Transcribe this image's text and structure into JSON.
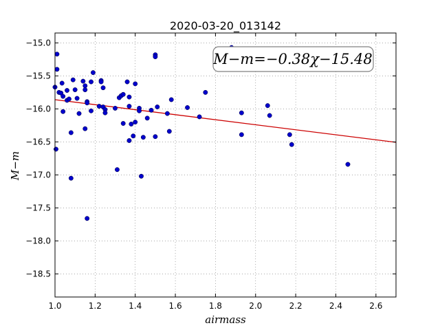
{
  "chart_data": {
    "type": "scatter",
    "title": "2020-03-20_013142",
    "xlabel": "airmass",
    "ylabel": "M−m",
    "xlim": [
      1.0,
      2.7
    ],
    "ylim": [
      -18.85,
      -14.85
    ],
    "x_ticks": [
      1.0,
      1.2,
      1.4,
      1.6,
      1.8,
      2.0,
      2.2,
      2.4,
      2.6
    ],
    "x_tick_labels": [
      "1.0",
      "1.2",
      "1.4",
      "1.6",
      "1.8",
      "2.0",
      "2.2",
      "2.4",
      "2.6"
    ],
    "y_ticks": [
      -15.0,
      -15.5,
      -16.0,
      -16.5,
      -17.0,
      -17.5,
      -18.0,
      -18.5
    ],
    "y_tick_labels": [
      "−15.0",
      "−15.5",
      "−16.0",
      "−16.5",
      "−17.0",
      "−17.5",
      "−18.0",
      "−18.5"
    ],
    "grid": true,
    "point_color": "#0000cc",
    "fit_color": "#cc0000",
    "fit": {
      "slope": -0.38,
      "intercept": -15.48
    },
    "annotation": "M−m=−0.38χ−15.48",
    "points": [
      [
        1.0,
        -15.67
      ],
      [
        1.005,
        -16.61
      ],
      [
        1.01,
        -15.17
      ],
      [
        1.01,
        -15.4
      ],
      [
        1.02,
        -15.75
      ],
      [
        1.03,
        -15.76
      ],
      [
        1.035,
        -15.61
      ],
      [
        1.04,
        -15.81
      ],
      [
        1.04,
        -16.04
      ],
      [
        1.06,
        -15.72
      ],
      [
        1.06,
        -15.87
      ],
      [
        1.07,
        -15.85
      ],
      [
        1.08,
        -16.36
      ],
      [
        1.08,
        -17.05
      ],
      [
        1.09,
        -15.56
      ],
      [
        1.1,
        -15.71
      ],
      [
        1.11,
        -15.84
      ],
      [
        1.12,
        -16.07
      ],
      [
        1.14,
        -15.58
      ],
      [
        1.15,
        -15.65
      ],
      [
        1.15,
        -15.71
      ],
      [
        1.15,
        -16.3
      ],
      [
        1.16,
        -15.89
      ],
      [
        1.16,
        -15.91
      ],
      [
        1.16,
        -17.66
      ],
      [
        1.18,
        -15.59
      ],
      [
        1.18,
        -16.03
      ],
      [
        1.19,
        -15.45
      ],
      [
        1.22,
        -15.96
      ],
      [
        1.23,
        -15.57
      ],
      [
        1.23,
        -15.59
      ],
      [
        1.24,
        -15.68
      ],
      [
        1.24,
        -15.97
      ],
      [
        1.25,
        -16.01
      ],
      [
        1.25,
        -16.06
      ],
      [
        1.3,
        -15.99
      ],
      [
        1.31,
        -16.92
      ],
      [
        1.32,
        -15.83
      ],
      [
        1.33,
        -15.8
      ],
      [
        1.34,
        -15.78
      ],
      [
        1.34,
        -16.22
      ],
      [
        1.36,
        -15.59
      ],
      [
        1.37,
        -15.82
      ],
      [
        1.37,
        -15.96
      ],
      [
        1.37,
        -16.48
      ],
      [
        1.38,
        -16.23
      ],
      [
        1.39,
        -16.41
      ],
      [
        1.4,
        -15.62
      ],
      [
        1.4,
        -16.2
      ],
      [
        1.42,
        -15.99
      ],
      [
        1.42,
        -16.03
      ],
      [
        1.43,
        -17.02
      ],
      [
        1.44,
        -16.43
      ],
      [
        1.46,
        -16.14
      ],
      [
        1.48,
        -16.02
      ],
      [
        1.5,
        -15.18
      ],
      [
        1.5,
        -15.21
      ],
      [
        1.5,
        -16.42
      ],
      [
        1.51,
        -15.97
      ],
      [
        1.56,
        -16.07
      ],
      [
        1.57,
        -16.34
      ],
      [
        1.58,
        -15.86
      ],
      [
        1.66,
        -15.98
      ],
      [
        1.72,
        -16.12
      ],
      [
        1.75,
        -15.75
      ],
      [
        1.88,
        -15.07
      ],
      [
        1.93,
        -16.06
      ],
      [
        1.93,
        -16.39
      ],
      [
        2.06,
        -15.95
      ],
      [
        2.07,
        -16.1
      ],
      [
        2.17,
        -16.39
      ],
      [
        2.18,
        -16.54
      ],
      [
        2.46,
        -16.84
      ]
    ]
  }
}
